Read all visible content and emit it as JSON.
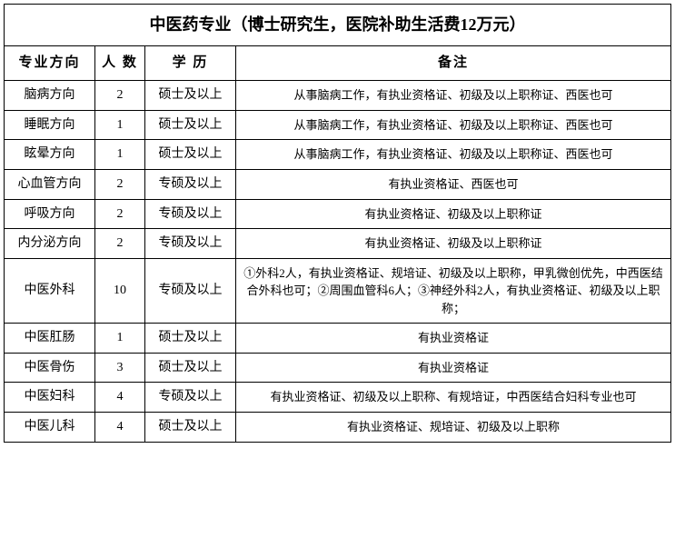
{
  "table": {
    "title": "中医药专业（博士研究生，医院补助生活费12万元）",
    "columns": [
      "专业方向",
      "人 数",
      "学 历",
      "备注"
    ],
    "rows": [
      {
        "direction": "脑病方向",
        "count": "2",
        "education": "硕士及以上",
        "remarks": "从事脑病工作，有执业资格证、初级及以上职称证、西医也可"
      },
      {
        "direction": "睡眠方向",
        "count": "1",
        "education": "硕士及以上",
        "remarks": "从事脑病工作，有执业资格证、初级及以上职称证、西医也可"
      },
      {
        "direction": "眩晕方向",
        "count": "1",
        "education": "硕士及以上",
        "remarks": "从事脑病工作，有执业资格证、初级及以上职称证、西医也可"
      },
      {
        "direction": "心血管方向",
        "count": "2",
        "education": "专硕及以上",
        "remarks": "有执业资格证、西医也可"
      },
      {
        "direction": "呼吸方向",
        "count": "2",
        "education": "专硕及以上",
        "remarks": "有执业资格证、初级及以上职称证"
      },
      {
        "direction": "内分泌方向",
        "count": "2",
        "education": "专硕及以上",
        "remarks": "有执业资格证、初级及以上职称证"
      },
      {
        "direction": "中医外科",
        "count": "10",
        "education": "专硕及以上",
        "remarks": "①外科2人，有执业资格证、规培证、初级及以上职称，甲乳微创优先，中西医结合外科也可；②周围血管科6人；③神经外科2人，有执业资格证、初级及以上职称；"
      },
      {
        "direction": "中医肛肠",
        "count": "1",
        "education": "硕士及以上",
        "remarks": "有执业资格证"
      },
      {
        "direction": "中医骨伤",
        "count": "3",
        "education": "硕士及以上",
        "remarks": "有执业资格证"
      },
      {
        "direction": "中医妇科",
        "count": "4",
        "education": "专硕及以上",
        "remarks": "有执业资格证、初级及以上职称、有规培证，中西医结合妇科专业也可"
      },
      {
        "direction": "中医儿科",
        "count": "4",
        "education": "硕士及以上",
        "remarks": "有执业资格证、规培证、初级及以上职称"
      }
    ],
    "styling": {
      "border_color": "#000000",
      "background_color": "#ffffff",
      "text_color": "#000000",
      "title_fontsize": 18,
      "header_fontsize": 15,
      "cell_fontsize": 14,
      "remarks_fontsize": 13,
      "font_family": "SimSun",
      "col_widths": {
        "direction": 100,
        "count": 55,
        "education": 100
      }
    }
  }
}
